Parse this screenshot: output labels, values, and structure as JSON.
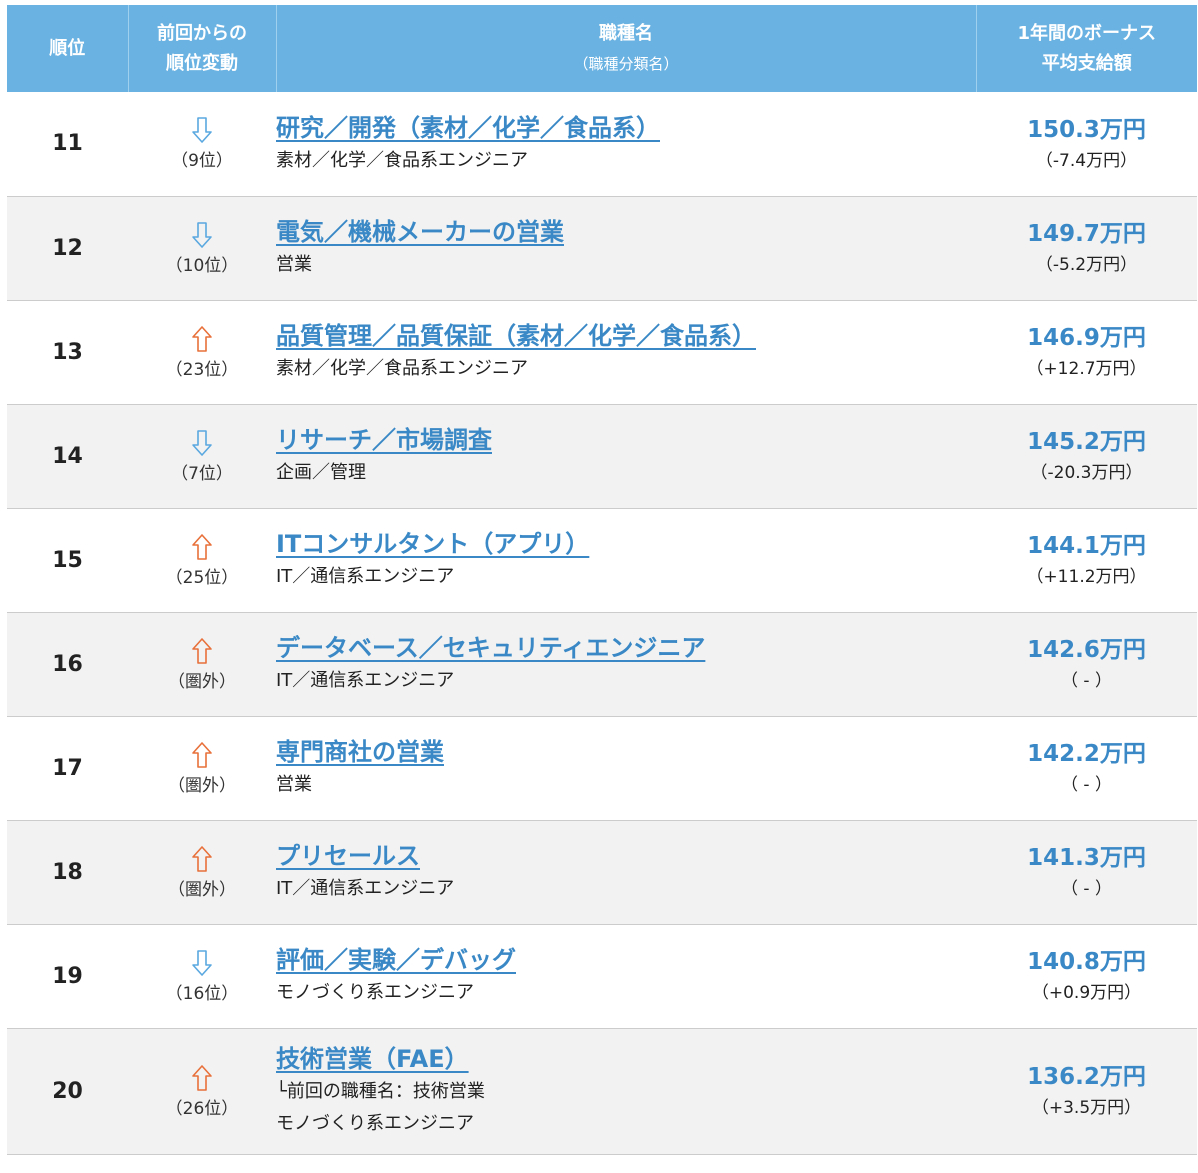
{
  "colors": {
    "header_bg": "#6ab2e2",
    "link_blue": "#3a89c6",
    "arrow_up": "#e8703a",
    "arrow_down": "#5aa8e0",
    "stripe": "#f2f2f2"
  },
  "header": {
    "rank": "順位",
    "change_line1": "前回からの",
    "change_line2": "順位変動",
    "job_title": "職種名",
    "job_sub": "（職種分類名）",
    "bonus_line1": "1年間のボーナス",
    "bonus_line2": "平均支給額"
  },
  "rows": [
    {
      "rank": "11",
      "direction": "down",
      "arrow_icon": "arrow-down-icon",
      "prev": "（9位）",
      "title": "研究／開発（素材／化学／食品系）",
      "note": "",
      "category": "素材／化学／食品系エンジニア",
      "amount": "150.3万円",
      "diff": "（-7.4万円）"
    },
    {
      "rank": "12",
      "direction": "down",
      "arrow_icon": "arrow-down-icon",
      "prev": "（10位）",
      "title": "電気／機械メーカーの営業",
      "note": "",
      "category": "営業",
      "amount": "149.7万円",
      "diff": "（-5.2万円）"
    },
    {
      "rank": "13",
      "direction": "up",
      "arrow_icon": "arrow-up-icon",
      "prev": "（23位）",
      "title": "品質管理／品質保証（素材／化学／食品系）",
      "note": "",
      "category": "素材／化学／食品系エンジニア",
      "amount": "146.9万円",
      "diff": "（+12.7万円）"
    },
    {
      "rank": "14",
      "direction": "down",
      "arrow_icon": "arrow-down-icon",
      "prev": "（7位）",
      "title": "リサーチ／市場調査",
      "note": "",
      "category": "企画／管理",
      "amount": "145.2万円",
      "diff": "（-20.3万円）"
    },
    {
      "rank": "15",
      "direction": "up",
      "arrow_icon": "arrow-up-icon",
      "prev": "（25位）",
      "title": "ITコンサルタント（アプリ）",
      "note": "",
      "category": "IT／通信系エンジニア",
      "amount": "144.1万円",
      "diff": "（+11.2万円）"
    },
    {
      "rank": "16",
      "direction": "up",
      "arrow_icon": "arrow-up-icon",
      "prev": "（圏外）",
      "title": "データベース／セキュリティエンジニア",
      "note": "",
      "category": "IT／通信系エンジニア",
      "amount": "142.6万円",
      "diff": "（ - ）"
    },
    {
      "rank": "17",
      "direction": "up",
      "arrow_icon": "arrow-up-icon",
      "prev": "（圏外）",
      "title": "専門商社の営業",
      "note": "",
      "category": "営業",
      "amount": "142.2万円",
      "diff": "（ - ）"
    },
    {
      "rank": "18",
      "direction": "up",
      "arrow_icon": "arrow-up-icon",
      "prev": "（圏外）",
      "title": "プリセールス",
      "note": "",
      "category": "IT／通信系エンジニア",
      "amount": "141.3万円",
      "diff": "（ - ）"
    },
    {
      "rank": "19",
      "direction": "down",
      "arrow_icon": "arrow-down-icon",
      "prev": "（16位）",
      "title": "評価／実験／デバッグ",
      "note": "",
      "category": "モノづくり系エンジニア",
      "amount": "140.8万円",
      "diff": "（+0.9万円）"
    },
    {
      "rank": "20",
      "direction": "up",
      "arrow_icon": "arrow-up-icon",
      "prev": "（26位）",
      "title": "技術営業（FAE）",
      "note": "└前回の職種名：技術営業",
      "category": "モノづくり系エンジニア",
      "amount": "136.2万円",
      "diff": "（+3.5万円）"
    }
  ]
}
